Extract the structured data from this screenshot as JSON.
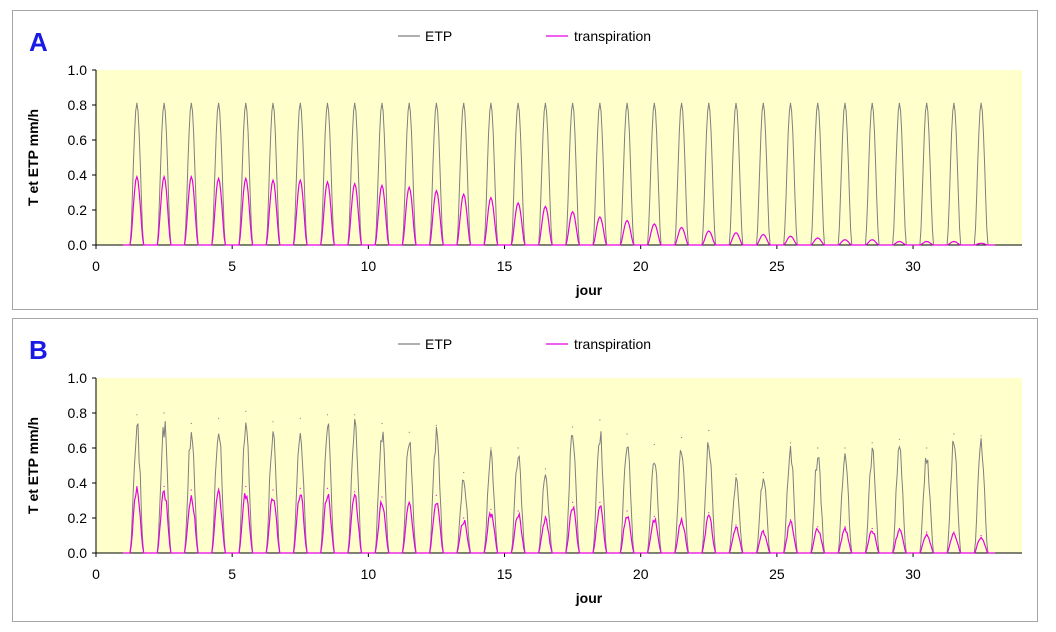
{
  "colors": {
    "etp": "#7f7f7f",
    "transpiration": "#e600e6",
    "plot_bg": "#ffffcc",
    "panel_letter": "#1a1ae6"
  },
  "chart_data": [
    {
      "type": "line",
      "panel_label": "A",
      "xlabel": "jour",
      "ylabel": "T et ETP mm/h",
      "xlim": [
        0,
        34
      ],
      "ylim": [
        0,
        1.0
      ],
      "x_ticks": [
        "0",
        "5",
        "10",
        "15",
        "20",
        "25",
        "30"
      ],
      "y_ticks": [
        "0.0",
        "0.2",
        "0.4",
        "0.6",
        "0.8",
        "1.0"
      ],
      "legend": "top-center",
      "grid": false,
      "x": [
        1.5,
        2.5,
        3.5,
        4.5,
        5.5,
        6.5,
        7.5,
        8.5,
        9.5,
        10.5,
        11.5,
        12.5,
        13.5,
        14.5,
        15.5,
        16.5,
        17.5,
        18.5,
        19.5,
        20.5,
        21.5,
        22.5,
        23.5,
        24.5,
        25.5,
        26.5,
        27.5,
        28.5,
        29.5,
        30.5,
        31.5,
        32.5
      ],
      "series": [
        {
          "name": "ETP",
          "values": [
            0.81,
            0.81,
            0.81,
            0.81,
            0.81,
            0.81,
            0.81,
            0.81,
            0.81,
            0.81,
            0.81,
            0.81,
            0.81,
            0.81,
            0.81,
            0.81,
            0.81,
            0.81,
            0.81,
            0.81,
            0.81,
            0.81,
            0.81,
            0.81,
            0.81,
            0.81,
            0.81,
            0.81,
            0.81,
            0.81,
            0.81,
            0.81
          ]
        },
        {
          "name": "transpiration",
          "values": [
            0.39,
            0.39,
            0.39,
            0.38,
            0.38,
            0.37,
            0.37,
            0.36,
            0.35,
            0.34,
            0.33,
            0.31,
            0.29,
            0.27,
            0.24,
            0.22,
            0.19,
            0.16,
            0.14,
            0.12,
            0.1,
            0.08,
            0.07,
            0.06,
            0.05,
            0.04,
            0.03,
            0.03,
            0.02,
            0.02,
            0.02,
            0.01
          ]
        }
      ]
    },
    {
      "type": "line",
      "panel_label": "B",
      "xlabel": "jour",
      "ylabel": "T et ETP mm/h",
      "xlim": [
        0,
        34
      ],
      "ylim": [
        0,
        1.0
      ],
      "x_ticks": [
        "0",
        "5",
        "10",
        "15",
        "20",
        "25",
        "30"
      ],
      "y_ticks": [
        "0.0",
        "0.2",
        "0.4",
        "0.6",
        "0.8",
        "1.0"
      ],
      "legend": "top-center",
      "grid": false,
      "x": [
        1.5,
        2.5,
        3.5,
        4.5,
        5.5,
        6.5,
        7.5,
        8.5,
        9.5,
        10.5,
        11.5,
        12.5,
        13.5,
        14.5,
        15.5,
        16.5,
        17.5,
        18.5,
        19.5,
        20.5,
        21.5,
        22.5,
        23.5,
        24.5,
        25.5,
        26.5,
        27.5,
        28.5,
        29.5,
        30.5,
        31.5,
        32.5
      ],
      "series": [
        {
          "name": "ETP",
          "values": [
            0.79,
            0.8,
            0.74,
            0.77,
            0.81,
            0.75,
            0.77,
            0.79,
            0.79,
            0.74,
            0.69,
            0.73,
            0.46,
            0.6,
            0.6,
            0.48,
            0.72,
            0.76,
            0.68,
            0.62,
            0.66,
            0.7,
            0.45,
            0.46,
            0.63,
            0.6,
            0.6,
            0.63,
            0.65,
            0.6,
            0.68,
            0.67
          ]
        },
        {
          "name": "transpiration",
          "values": [
            0.38,
            0.38,
            0.36,
            0.37,
            0.38,
            0.36,
            0.37,
            0.37,
            0.35,
            0.32,
            0.29,
            0.33,
            0.2,
            0.25,
            0.24,
            0.21,
            0.29,
            0.29,
            0.24,
            0.21,
            0.2,
            0.23,
            0.16,
            0.13,
            0.19,
            0.15,
            0.15,
            0.14,
            0.14,
            0.12,
            0.12,
            0.1
          ]
        }
      ]
    }
  ]
}
